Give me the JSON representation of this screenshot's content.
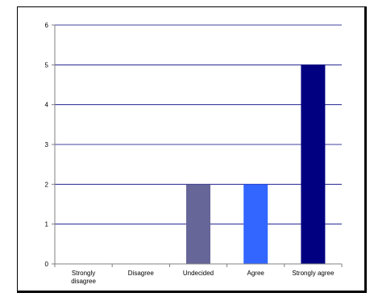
{
  "chart_data": {
    "type": "bar",
    "categories": [
      "Strongly disagree",
      "Disagree",
      "Undecided",
      "Agree",
      "Strongly agree"
    ],
    "category_tick_lines": [
      [
        "Strongly",
        "disagree"
      ],
      [
        "Disagree"
      ],
      [
        "Undecided"
      ],
      [
        "Agree"
      ],
      [
        "Strongly agree"
      ]
    ],
    "values": [
      0,
      0,
      2,
      2,
      5
    ],
    "bar_colors": [
      "#666699",
      "#666699",
      "#666699",
      "#3366FF",
      "#000080"
    ],
    "ylim": [
      0,
      6
    ],
    "yticks": [
      0,
      1,
      2,
      3,
      4,
      5,
      6
    ],
    "title": "",
    "xlabel": "",
    "ylabel": "",
    "grid": true,
    "legend": "none",
    "colors": {
      "gridline": "#000080",
      "axis": "#808080",
      "frame": "#000000"
    }
  }
}
